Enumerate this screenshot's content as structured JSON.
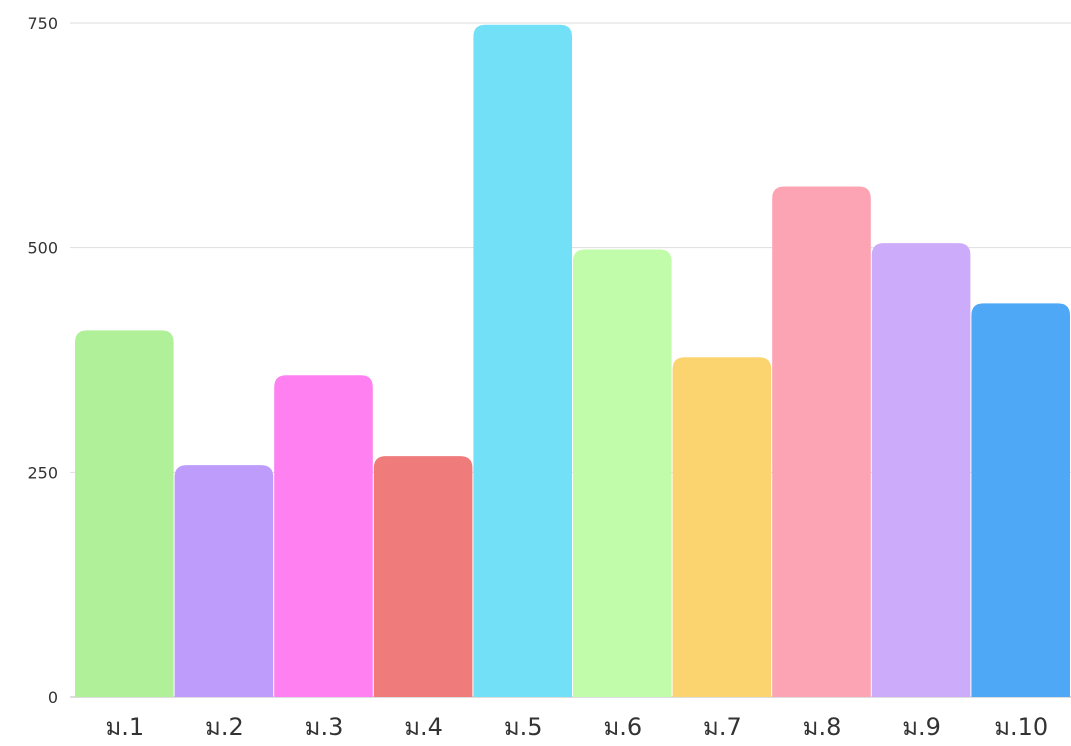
{
  "chart_data": {
    "type": "bar",
    "title": "",
    "xlabel": "",
    "ylabel": "",
    "categories": [
      "ม.1",
      "ม.2",
      "ม.3",
      "ม.4",
      "ม.5",
      "ม.6",
      "ม.7",
      "ม.8",
      "ม.9",
      "ม.10"
    ],
    "values": [
      408,
      258,
      358,
      268,
      748,
      498,
      378,
      568,
      505,
      438
    ],
    "colors": [
      "#b0f099",
      "#be9cfc",
      "#ff80f0",
      "#f07b7b",
      "#72e0f6",
      "#c0fcaa",
      "#fbd470",
      "#fca4b4",
      "#cdabfb",
      "#4ea8f6"
    ],
    "yticks": [
      0,
      250,
      500,
      750
    ],
    "ylim": [
      0,
      750
    ],
    "grid": true,
    "gridline_color": "#dddddd",
    "legend": "none"
  }
}
